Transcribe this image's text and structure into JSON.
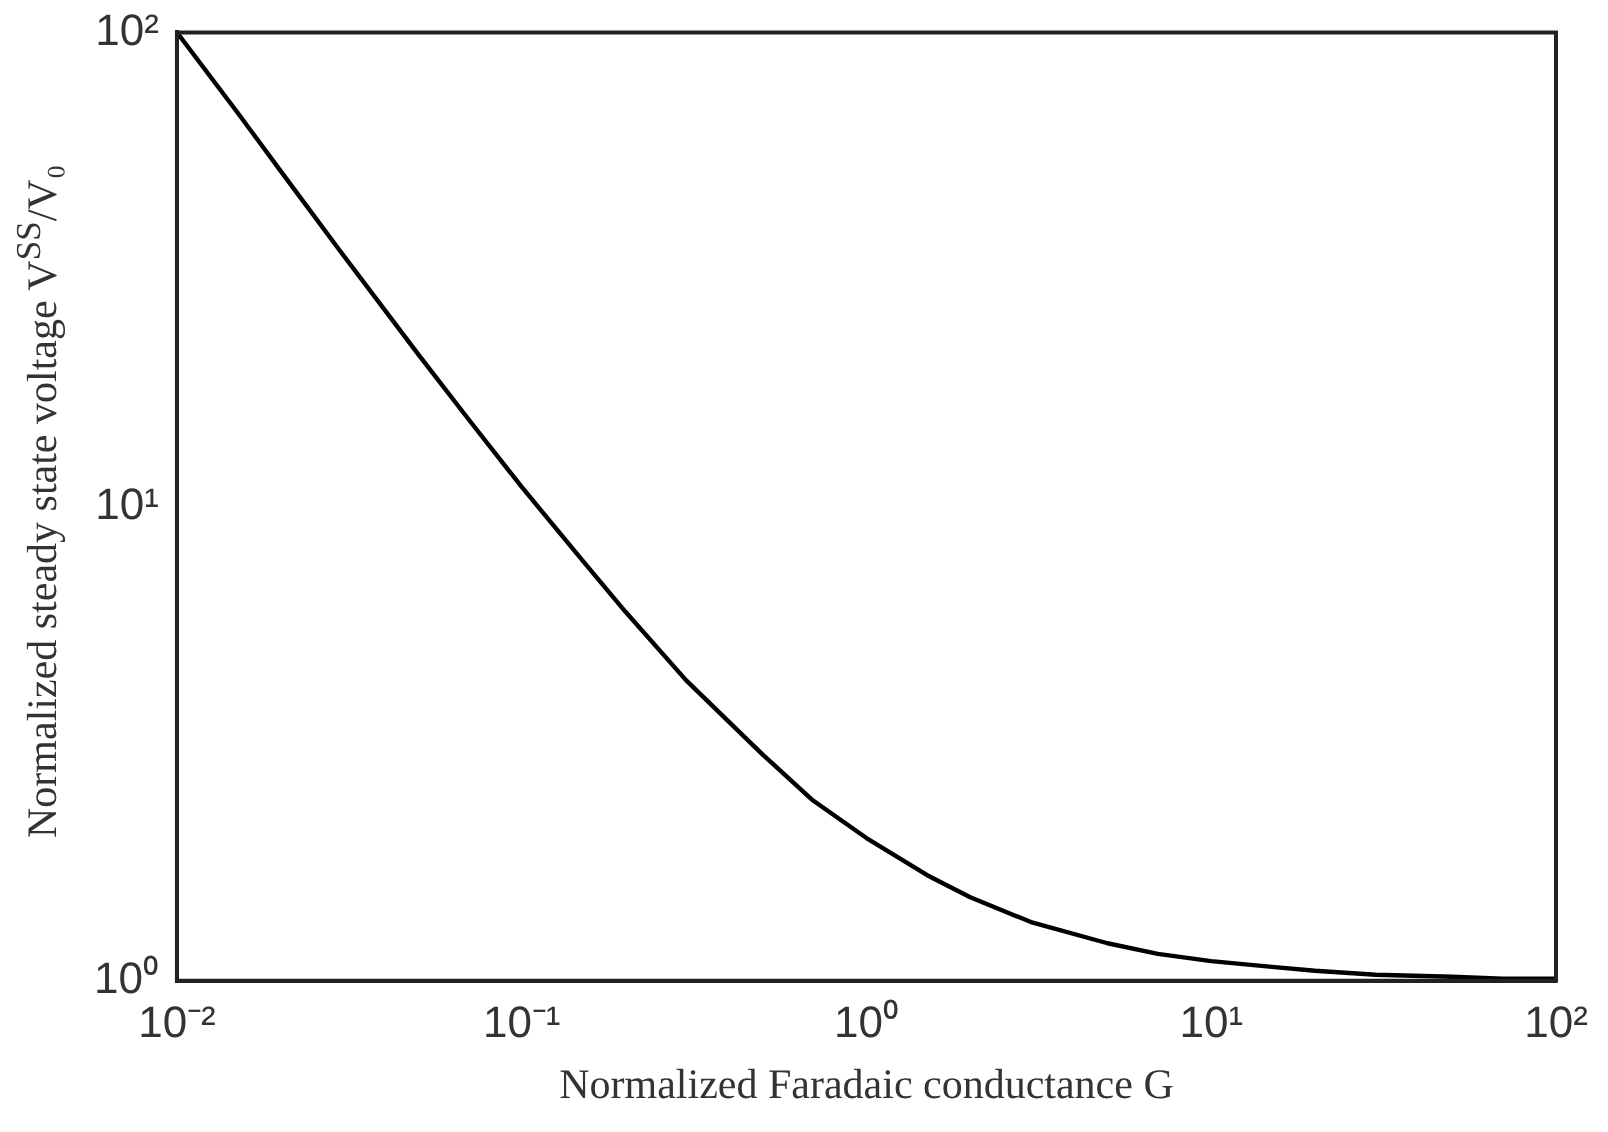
{
  "chart_data": {
    "type": "line",
    "xlabel": "Normalized Faradaic conductance G",
    "ylabel": "Normalized steady state voltage V$^{SS}$/V₀",
    "x": [
      0.01,
      0.015,
      0.02,
      0.03,
      0.05,
      0.07,
      0.1,
      0.15,
      0.2,
      0.3,
      0.5,
      0.7,
      1,
      1.5,
      2,
      3,
      5,
      7,
      10,
      15,
      20,
      30,
      50,
      70,
      100
    ],
    "series": [
      {
        "color": "#000000",
        "values": [
          100,
          67.7,
          51,
          34.3,
          21,
          15.3,
          11,
          7.7,
          6,
          4.3,
          3,
          2.4,
          2,
          1.67,
          1.5,
          1.33,
          1.2,
          1.14,
          1.1,
          1.07,
          1.05,
          1.03,
          1.02,
          1.01,
          1.01
        ]
      }
    ],
    "log": "xy",
    "xlim": [
      0.01,
      100
    ],
    "ylim": [
      1,
      100
    ],
    "xticks": [
      {
        "value": 0.01,
        "label": "10⁻²"
      },
      {
        "value": 0.1,
        "label": "10⁻¹"
      },
      {
        "value": 1,
        "label": "10⁰"
      },
      {
        "value": 10,
        "label": "10¹"
      },
      {
        "value": 100,
        "label": "10²"
      }
    ],
    "yticks": [
      {
        "value": 1,
        "label": "10⁰"
      },
      {
        "value": 10,
        "label": "10¹"
      },
      {
        "value": 100,
        "label": "10²"
      }
    ],
    "grid": false,
    "legend": false,
    "marker": "none",
    "line_style": "solid"
  }
}
